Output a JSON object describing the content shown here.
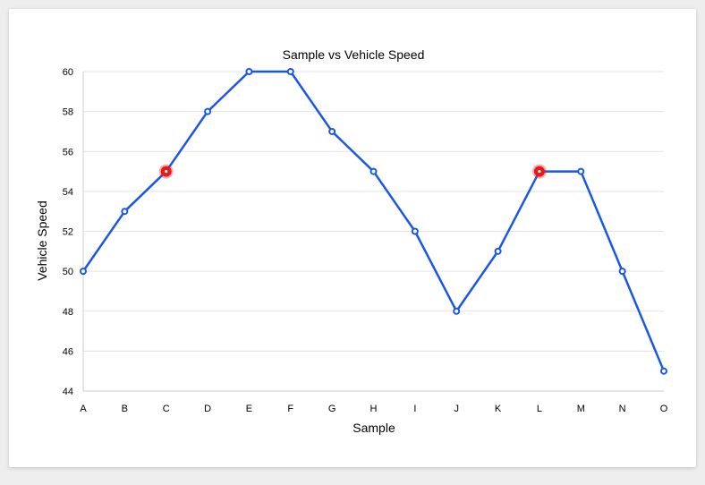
{
  "chart_data": {
    "type": "line",
    "title": "Sample vs Vehicle Speed",
    "xlabel": "Sample",
    "ylabel": "Vehicle Speed",
    "categories": [
      "A",
      "B",
      "C",
      "D",
      "E",
      "F",
      "G",
      "H",
      "I",
      "J",
      "K",
      "L",
      "M",
      "N",
      "O"
    ],
    "values": [
      50,
      53,
      55,
      58,
      60,
      60,
      57,
      55,
      52,
      48,
      51,
      55,
      55,
      50,
      45
    ],
    "highlighted_categories": [
      "C",
      "L"
    ],
    "ylim": [
      44,
      60
    ],
    "yticks": [
      44,
      46,
      48,
      50,
      52,
      54,
      56,
      58,
      60
    ],
    "grid": true,
    "legend": "none",
    "colors": {
      "line": "#1a56e8",
      "highlight": "#e8191a",
      "grid": "#e3e3e3",
      "axis": "#cccccc"
    }
  }
}
